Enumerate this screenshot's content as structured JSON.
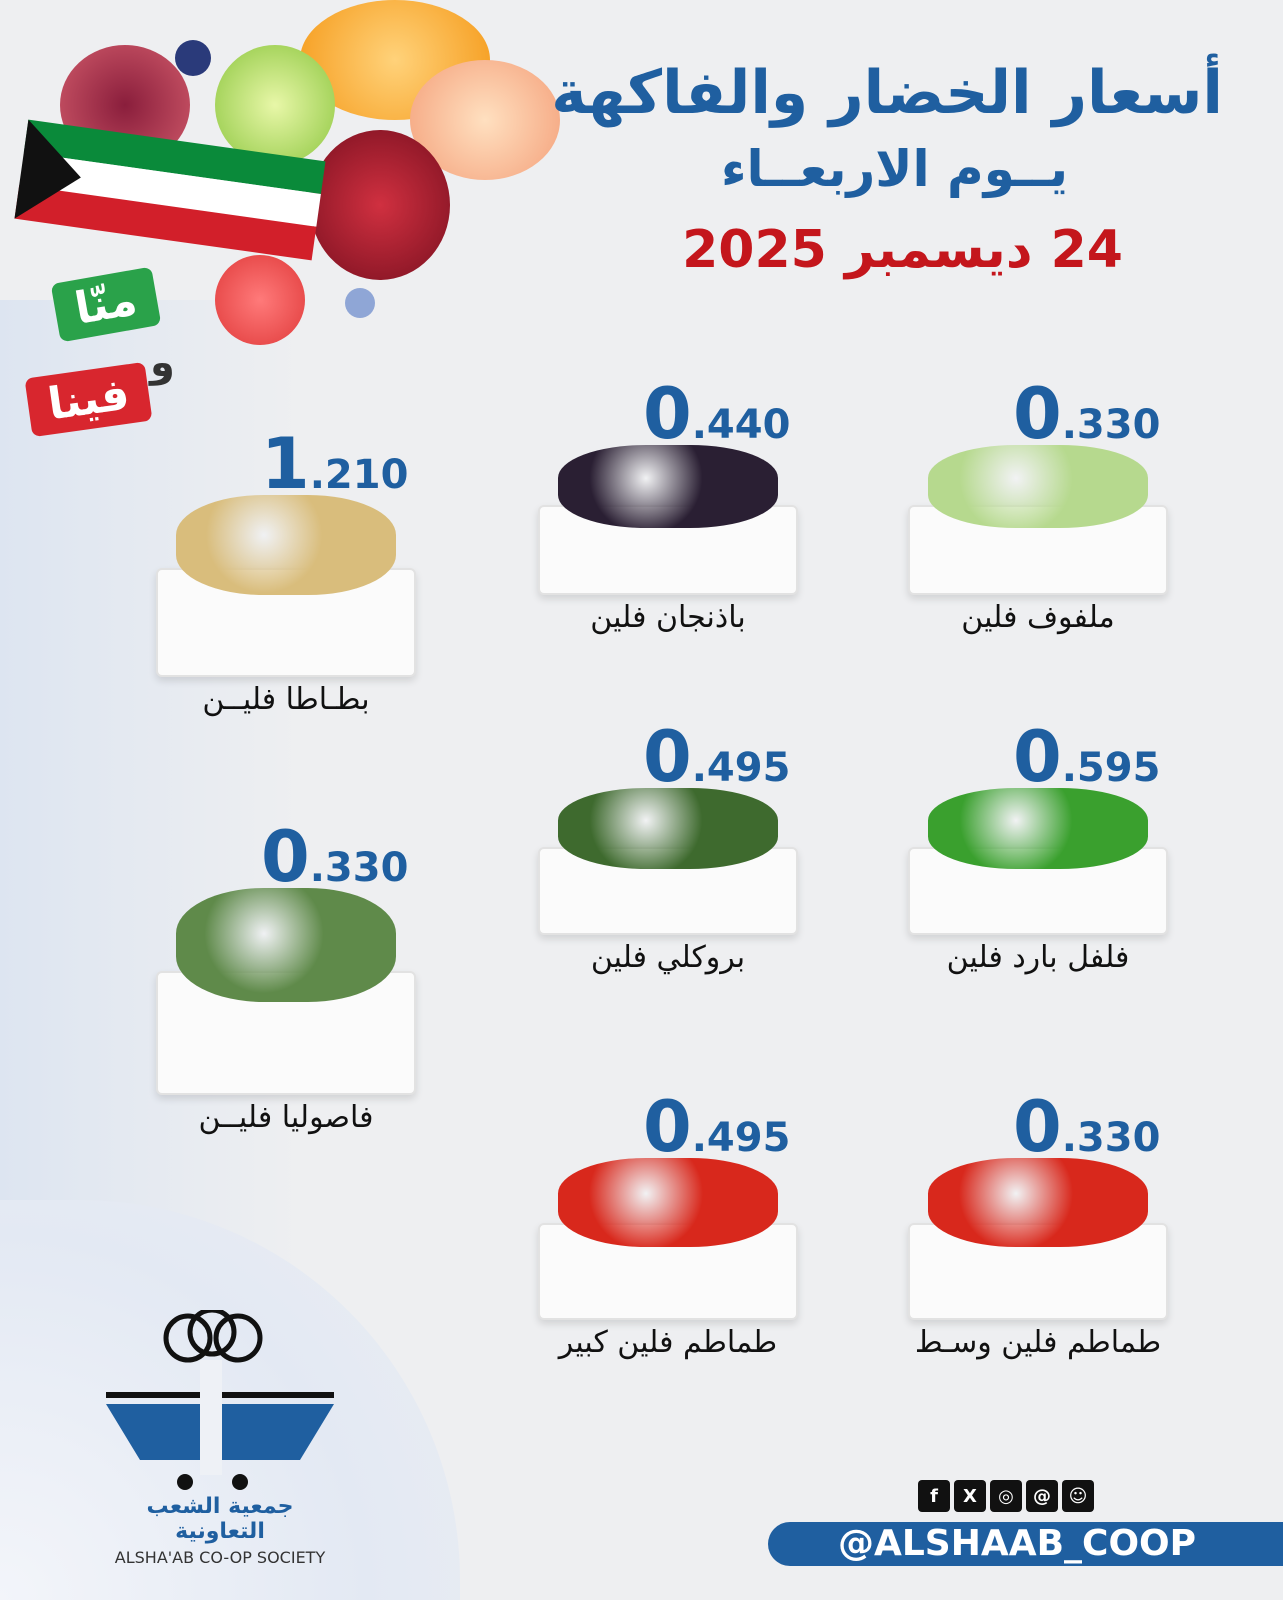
{
  "header": {
    "title": "أسعار الخضار والفاكهة",
    "day": "يــوم الاربعــاء",
    "date": "24 ديسمبر 2025"
  },
  "campaign": {
    "line1": "منّا",
    "line2": "و",
    "line3": "فينا",
    "flag": "kuwait-flag"
  },
  "colors": {
    "brand_blue": "#1f5fa0",
    "date_red": "#c4161c"
  },
  "items": [
    {
      "name": "ملفوف فلين",
      "price_int": "0",
      "price_dec": ".330",
      "color": "#b6d98e"
    },
    {
      "name": "باذنجان فلين",
      "price_int": "0",
      "price_dec": ".440",
      "color": "#2a1f33"
    },
    {
      "name": "بطـاطا فليــن",
      "price_int": "1",
      "price_dec": ".210",
      "color": "#d9bd7c"
    },
    {
      "name": "فلفل بارد فلين",
      "price_int": "0",
      "price_dec": ".595",
      "color": "#3aa02e"
    },
    {
      "name": "بروكلي فلين",
      "price_int": "0",
      "price_dec": ".495",
      "color": "#3e6a2e"
    },
    {
      "name": "فاصوليا فليــن",
      "price_int": "0",
      "price_dec": ".330",
      "color": "#5f8a4a"
    },
    {
      "name": "طماطم فلين وسـط",
      "price_int": "0",
      "price_dec": ".330",
      "color": "#d8281c"
    },
    {
      "name": "طماطم فلين كبير",
      "price_int": "0",
      "price_dec": ".495",
      "color": "#d8281c"
    }
  ],
  "footer": {
    "org_ar": "جمعية الشعب التعاونية",
    "org_en": "ALSHA'AB CO-OP SOCIETY",
    "handle": "@ALSHAAB_COOP",
    "social_icons": [
      "facebook-icon",
      "x-icon",
      "instagram-icon",
      "threads-icon",
      "snapchat-icon"
    ],
    "social_glyphs": [
      "f",
      "X",
      "◎",
      "@",
      "☺"
    ]
  }
}
